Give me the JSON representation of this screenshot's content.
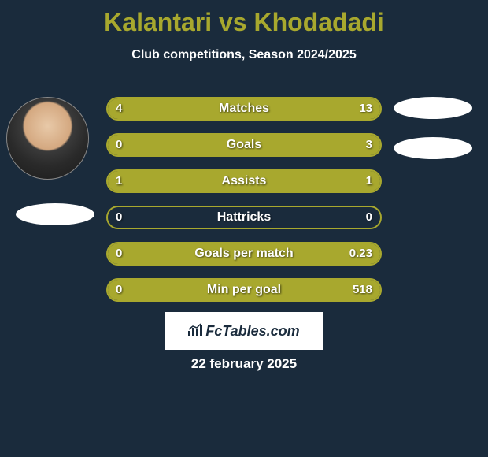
{
  "title": "Kalantari vs Khodadadi",
  "subtitle": "Club competitions, Season 2024/2025",
  "date": "22 february 2025",
  "logo_text": "FcTables.com",
  "colors": {
    "background": "#1a2b3c",
    "accent": "#a8a82e",
    "text": "#ffffff"
  },
  "stats": [
    {
      "label": "Matches",
      "left_value": "4",
      "right_value": "13",
      "left_fill_pct": 23.5,
      "right_fill_pct": 76.5
    },
    {
      "label": "Goals",
      "left_value": "0",
      "right_value": "3",
      "left_fill_pct": 0,
      "right_fill_pct": 100
    },
    {
      "label": "Assists",
      "left_value": "1",
      "right_value": "1",
      "left_fill_pct": 50,
      "right_fill_pct": 50
    },
    {
      "label": "Hattricks",
      "left_value": "0",
      "right_value": "0",
      "left_fill_pct": 0,
      "right_fill_pct": 0
    },
    {
      "label": "Goals per match",
      "left_value": "0",
      "right_value": "0.23",
      "left_fill_pct": 0,
      "right_fill_pct": 100
    },
    {
      "label": "Min per goal",
      "left_value": "0",
      "right_value": "518",
      "left_fill_pct": 0,
      "right_fill_pct": 100
    }
  ]
}
